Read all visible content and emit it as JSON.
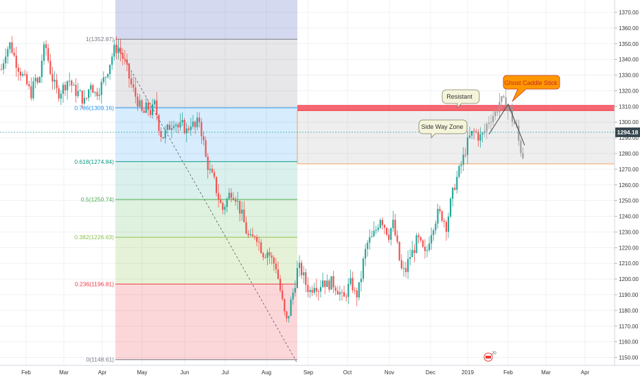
{
  "chart_data": {
    "type": "candlestick",
    "title": "",
    "xlabel": "",
    "ylabel": "",
    "ylim": [
      1148,
      1377
    ],
    "grid": true,
    "x_ticks": [
      "Feb",
      "Mar",
      "Apr",
      "May",
      "Jun",
      "Jul",
      "Aug",
      "Sep",
      "Oct",
      "Nov",
      "Dec",
      "2019",
      "Feb",
      "Mar",
      "Apr"
    ],
    "y_ticks": [
      "1370.00",
      "1360.00",
      "1350.00",
      "1340.00",
      "1330.00",
      "1320.00",
      "1310.00",
      "1300.00",
      "1290.00",
      "1280.00",
      "1270.00",
      "1260.00",
      "1250.00",
      "1240.00",
      "1230.00",
      "1220.00",
      "1210.00",
      "1200.00",
      "1190.00",
      "1180.00",
      "1170.00",
      "1160.00",
      "1150.00"
    ],
    "last_price": "1294.18",
    "fib_levels": [
      {
        "label": "1(1352.87)",
        "value": 1352.87,
        "color": "#787b86"
      },
      {
        "label": "0.786(1309.16)",
        "value": 1309.16,
        "color": "#2196f3"
      },
      {
        "label": "0.618(1274.84)",
        "value": 1274.84,
        "color": "#089981"
      },
      {
        "label": "0.5(1250.74)",
        "value": 1250.74,
        "color": "#4caf50"
      },
      {
        "label": "0.382(1226.63)",
        "value": 1226.63,
        "color": "#8bc34a"
      },
      {
        "label": "0.236(1196.81)",
        "value": 1196.81,
        "color": "#f23645"
      },
      {
        "label": "0(1148.61)",
        "value": 1148.61,
        "color": "#787b86"
      }
    ],
    "annotations": {
      "resistant": "Resistant",
      "side_way": "Side Way Zone",
      "ghost": "Ghost Caddle Stick"
    },
    "price_path": [
      [
        0,
        1330
      ],
      [
        8,
        1345
      ],
      [
        15,
        1350
      ],
      [
        22,
        1340
      ],
      [
        30,
        1332
      ],
      [
        38,
        1325
      ],
      [
        45,
        1318
      ],
      [
        52,
        1328
      ],
      [
        56,
        1322
      ],
      [
        60,
        1338
      ],
      [
        66,
        1350
      ],
      [
        72,
        1335
      ],
      [
        78,
        1325
      ],
      [
        84,
        1318
      ],
      [
        92,
        1322
      ],
      [
        100,
        1328
      ],
      [
        108,
        1320
      ],
      [
        116,
        1318
      ],
      [
        124,
        1312
      ],
      [
        132,
        1326
      ],
      [
        138,
        1318
      ],
      [
        146,
        1322
      ],
      [
        154,
        1330
      ],
      [
        160,
        1338
      ],
      [
        166,
        1346
      ],
      [
        172,
        1348
      ],
      [
        178,
        1342
      ],
      [
        184,
        1335
      ],
      [
        190,
        1325
      ],
      [
        196,
        1318
      ],
      [
        202,
        1312
      ],
      [
        208,
        1304
      ],
      [
        214,
        1310
      ],
      [
        220,
        1306
      ],
      [
        226,
        1312
      ],
      [
        230,
        1300
      ],
      [
        236,
        1290
      ],
      [
        242,
        1294
      ],
      [
        248,
        1298
      ],
      [
        254,
        1302
      ],
      [
        260,
        1296
      ],
      [
        266,
        1298
      ],
      [
        272,
        1294
      ],
      [
        278,
        1300
      ],
      [
        284,
        1296
      ],
      [
        290,
        1302
      ],
      [
        296,
        1288
      ],
      [
        300,
        1276
      ],
      [
        306,
        1268
      ],
      [
        312,
        1262
      ],
      [
        318,
        1252
      ],
      [
        324,
        1244
      ],
      [
        330,
        1250
      ],
      [
        336,
        1256
      ],
      [
        342,
        1254
      ],
      [
        348,
        1246
      ],
      [
        354,
        1238
      ],
      [
        360,
        1228
      ],
      [
        366,
        1224
      ],
      [
        372,
        1230
      ],
      [
        378,
        1222
      ],
      [
        384,
        1216
      ],
      [
        390,
        1218
      ],
      [
        396,
        1212
      ],
      [
        402,
        1208
      ],
      [
        406,
        1198
      ],
      [
        410,
        1188
      ],
      [
        414,
        1178
      ],
      [
        418,
        1172
      ],
      [
        422,
        1182
      ],
      [
        428,
        1194
      ],
      [
        434,
        1208
      ],
      [
        440,
        1204
      ],
      [
        446,
        1196
      ],
      [
        452,
        1192
      ],
      [
        458,
        1198
      ],
      [
        464,
        1194
      ],
      [
        470,
        1200
      ],
      [
        476,
        1196
      ],
      [
        482,
        1198
      ],
      [
        488,
        1196
      ],
      [
        494,
        1192
      ],
      [
        500,
        1186
      ],
      [
        506,
        1194
      ],
      [
        512,
        1198
      ],
      [
        518,
        1188
      ],
      [
        524,
        1196
      ],
      [
        530,
        1214
      ],
      [
        536,
        1224
      ],
      [
        542,
        1226
      ],
      [
        548,
        1232
      ],
      [
        554,
        1240
      ],
      [
        560,
        1234
      ],
      [
        566,
        1228
      ],
      [
        572,
        1236
      ],
      [
        578,
        1222
      ],
      [
        584,
        1206
      ],
      [
        590,
        1204
      ],
      [
        596,
        1214
      ],
      [
        602,
        1218
      ],
      [
        608,
        1226
      ],
      [
        614,
        1220
      ],
      [
        620,
        1214
      ],
      [
        626,
        1228
      ],
      [
        632,
        1236
      ],
      [
        638,
        1242
      ],
      [
        644,
        1240
      ],
      [
        650,
        1234
      ],
      [
        656,
        1248
      ],
      [
        662,
        1260
      ],
      [
        668,
        1268
      ],
      [
        674,
        1276
      ],
      [
        680,
        1286
      ],
      [
        686,
        1292
      ],
      [
        692,
        1294
      ],
      [
        698,
        1290
      ],
      [
        704,
        1292
      ],
      [
        710,
        1300
      ],
      [
        716,
        1304
      ],
      [
        722,
        1306
      ],
      [
        728,
        1314
      ],
      [
        734,
        1312
      ],
      [
        740,
        1310
      ],
      [
        746,
        1302
      ],
      [
        752,
        1296
      ],
      [
        756,
        1286
      ],
      [
        760,
        1280
      ],
      [
        763,
        1278
      ]
    ]
  }
}
